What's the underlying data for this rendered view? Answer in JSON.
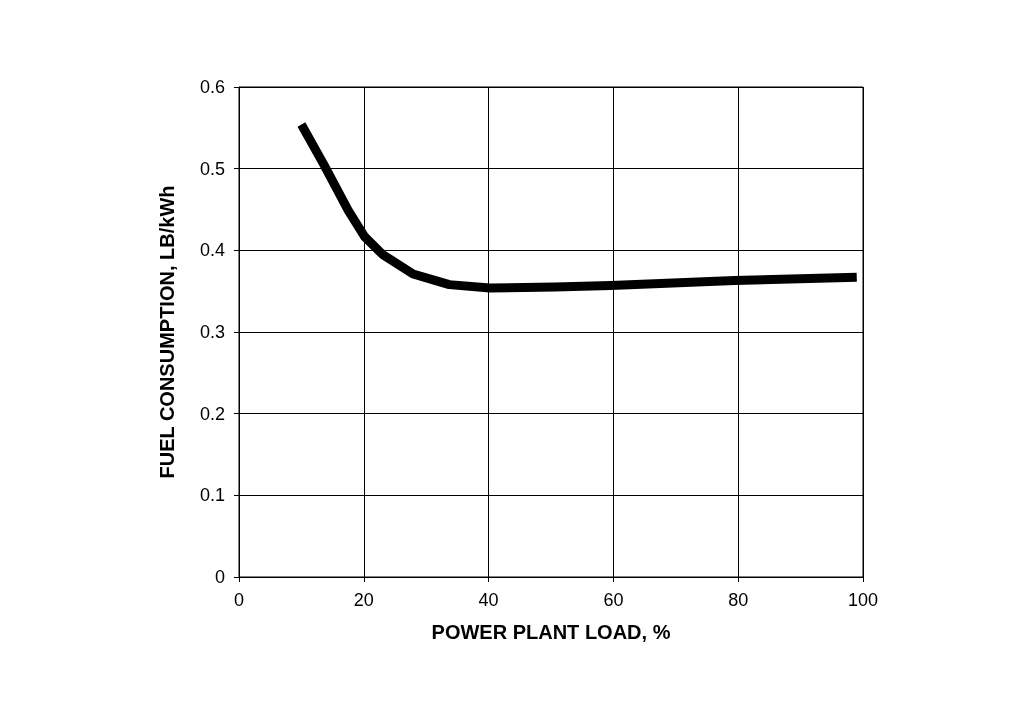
{
  "chart_data": {
    "type": "line",
    "xlabel": "POWER PLANT LOAD, %",
    "ylabel": "FUEL CONSUMPTION, LB/kWh",
    "series": [
      {
        "color": "#000000",
        "x": [
          10,
          13.6,
          17.5,
          20.1,
          23,
          27.9,
          33.7,
          40.2,
          50.6,
          59.6,
          79.4,
          99
        ],
        "values": [
          0.554,
          0.505,
          0.449,
          0.417,
          0.395,
          0.371,
          0.358,
          0.354,
          0.355,
          0.357,
          0.363,
          0.367
        ]
      }
    ],
    "xlim": [
      0,
      100
    ],
    "xticks": [
      0,
      20,
      40,
      60,
      80,
      100
    ],
    "ylim": [
      0,
      0.6
    ],
    "yticks": [
      0,
      0.1,
      0.2,
      0.3,
      0.4,
      0.5,
      0.6
    ],
    "grid": true,
    "marker": "none",
    "line_style": "solid"
  }
}
